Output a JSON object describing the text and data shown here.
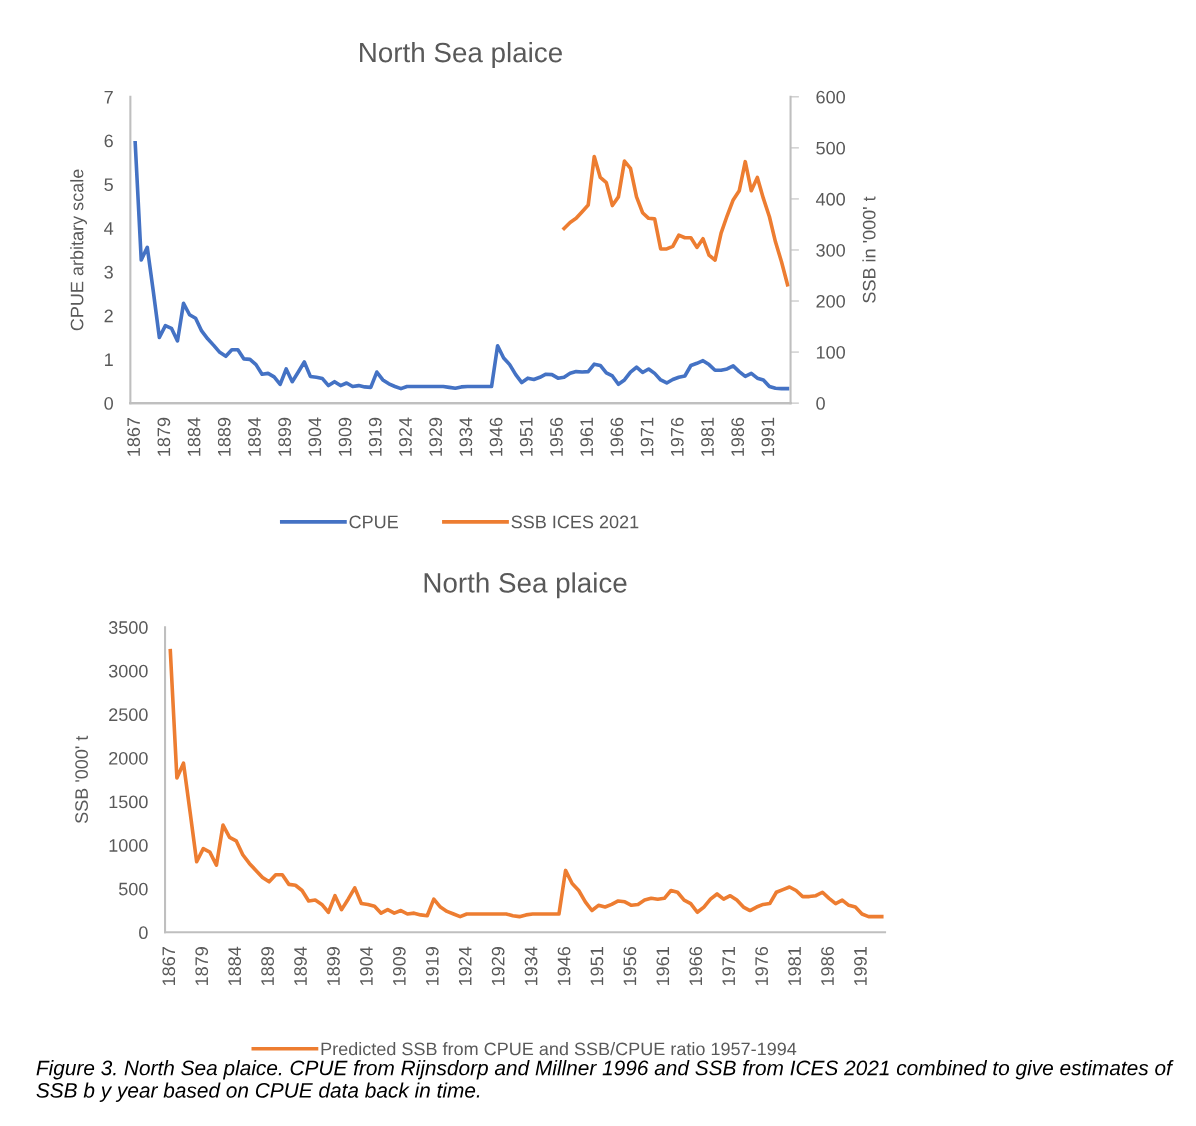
{
  "chart_data": [
    {
      "type": "line",
      "title": "North Sea plaice",
      "ylabel": "CPUE arbitary scale",
      "y2label": "SSB in '000' t",
      "categories": [
        "1867",
        null,
        null,
        null,
        null,
        "1879",
        null,
        null,
        null,
        null,
        "1884",
        null,
        null,
        null,
        null,
        "1889",
        null,
        null,
        null,
        null,
        "1894",
        null,
        null,
        null,
        null,
        "1899",
        null,
        null,
        null,
        null,
        "1904",
        null,
        null,
        null,
        null,
        "1909",
        null,
        null,
        null,
        null,
        "1919",
        null,
        null,
        null,
        null,
        "1924",
        null,
        null,
        null,
        null,
        "1929",
        null,
        null,
        null,
        null,
        "1934",
        null,
        null,
        null,
        null,
        "1946",
        null,
        null,
        null,
        null,
        "1951",
        null,
        null,
        null,
        null,
        "1956",
        null,
        null,
        null,
        null,
        "1961",
        null,
        null,
        null,
        null,
        "1966",
        null,
        null,
        null,
        null,
        "1971",
        null,
        null,
        null,
        null,
        "1976",
        null,
        null,
        null,
        null,
        "1981",
        null,
        null,
        null,
        null,
        "1986",
        null,
        null,
        null,
        null,
        "1991",
        null,
        null,
        null
      ],
      "series": [
        {
          "name": "CPUE",
          "color": "#4472c4",
          "values": [
            5.95,
            3.27,
            3.56,
            2.55,
            1.5,
            1.77,
            1.71,
            1.42,
            2.28,
            2.02,
            1.94,
            1.65,
            1.47,
            1.32,
            1.16,
            1.07,
            1.22,
            1.22,
            1.01,
            1.0,
            0.88,
            0.66,
            0.68,
            0.6,
            0.43,
            0.78,
            0.49,
            0.71,
            0.94,
            0.61,
            0.59,
            0.56,
            0.4,
            0.49,
            0.4,
            0.46,
            0.38,
            0.4,
            0.37,
            0.36,
            0.71,
            0.53,
            0.44,
            0.38,
            0.33,
            0.38,
            0.38,
            0.38,
            0.38,
            0.38,
            0.38,
            0.38,
            0.36,
            0.34,
            0.37,
            0.38,
            0.38,
            0.38,
            0.38,
            0.38,
            1.31,
            1.03,
            0.88,
            0.65,
            0.47,
            0.57,
            0.54,
            0.59,
            0.66,
            0.65,
            0.57,
            0.59,
            0.68,
            0.72,
            0.71,
            0.72,
            0.89,
            0.86,
            0.69,
            0.62,
            0.43,
            0.53,
            0.71,
            0.82,
            0.7,
            0.78,
            0.68,
            0.53,
            0.46,
            0.54,
            0.59,
            0.62,
            0.86,
            0.91,
            0.97,
            0.88,
            0.75,
            0.75,
            0.78,
            0.85,
            0.72,
            0.61,
            0.68,
            0.57,
            0.53,
            0.38,
            0.34,
            0.33,
            0.33
          ]
        },
        {
          "name": "SSB ICES 2021",
          "color": "#ed7d31",
          "axis": "y2",
          "values": [
            null,
            null,
            null,
            null,
            null,
            null,
            null,
            null,
            null,
            null,
            null,
            null,
            null,
            null,
            null,
            null,
            null,
            null,
            null,
            null,
            null,
            null,
            null,
            null,
            null,
            null,
            null,
            null,
            null,
            null,
            null,
            null,
            null,
            null,
            null,
            null,
            null,
            null,
            null,
            null,
            null,
            null,
            null,
            null,
            null,
            null,
            null,
            null,
            null,
            null,
            null,
            null,
            null,
            null,
            null,
            null,
            null,
            null,
            null,
            null,
            null,
            null,
            null,
            null,
            null,
            null,
            null,
            null,
            null,
            null,
            null,
            342,
            354,
            362,
            375,
            388,
            483,
            442,
            432,
            387,
            404,
            474,
            460,
            404,
            373,
            362,
            361,
            302,
            302,
            307,
            329,
            324,
            324,
            305,
            322,
            290,
            280,
            333,
            367,
            398,
            416,
            473,
            416,
            442,
            401,
            365,
            316,
            277,
            232
          ]
        }
      ],
      "ylim": [
        0,
        7
      ],
      "yticks": [
        0,
        1,
        2,
        3,
        4,
        5,
        6,
        7
      ],
      "y2lim": [
        0,
        600
      ],
      "y2ticks": [
        0,
        100,
        200,
        300,
        400,
        500,
        600
      ],
      "grid": false,
      "legend": "bottom",
      "marker": "none",
      "line_style": "solid"
    },
    {
      "type": "line",
      "title": "North Sea plaice",
      "ylabel": "SSB '000' t",
      "categories": [
        "1867",
        null,
        null,
        null,
        null,
        "1879",
        null,
        null,
        null,
        null,
        "1884",
        null,
        null,
        null,
        null,
        "1889",
        null,
        null,
        null,
        null,
        "1894",
        null,
        null,
        null,
        null,
        "1899",
        null,
        null,
        null,
        null,
        "1904",
        null,
        null,
        null,
        null,
        "1909",
        null,
        null,
        null,
        null,
        "1919",
        null,
        null,
        null,
        null,
        "1924",
        null,
        null,
        null,
        null,
        "1929",
        null,
        null,
        null,
        null,
        "1934",
        null,
        null,
        null,
        null,
        "1946",
        null,
        null,
        null,
        null,
        "1951",
        null,
        null,
        null,
        null,
        "1956",
        null,
        null,
        null,
        null,
        "1961",
        null,
        null,
        null,
        null,
        "1966",
        null,
        null,
        null,
        null,
        "1971",
        null,
        null,
        null,
        null,
        "1976",
        null,
        null,
        null,
        null,
        "1981",
        null,
        null,
        null,
        null,
        "1986",
        null,
        null,
        null,
        null,
        "1991",
        null,
        null,
        null
      ],
      "series": [
        {
          "name": "Predicted SSB from CPUE and SSB/CPUE ratio 1957-1994",
          "color": "#ed7d31",
          "values": [
            3230,
            1770,
            1940,
            1380,
            810,
            960,
            920,
            770,
            1230,
            1090,
            1050,
            890,
            790,
            710,
            630,
            580,
            660,
            660,
            550,
            540,
            480,
            360,
            370,
            320,
            230,
            420,
            260,
            380,
            510,
            330,
            320,
            300,
            220,
            260,
            220,
            250,
            210,
            220,
            200,
            190,
            380,
            290,
            240,
            210,
            180,
            210,
            210,
            210,
            210,
            210,
            210,
            210,
            190,
            180,
            200,
            210,
            210,
            210,
            210,
            210,
            710,
            560,
            480,
            350,
            250,
            310,
            290,
            320,
            360,
            350,
            310,
            320,
            370,
            390,
            380,
            390,
            480,
            460,
            370,
            330,
            230,
            290,
            380,
            440,
            380,
            420,
            370,
            290,
            250,
            290,
            320,
            330,
            460,
            490,
            520,
            480,
            410,
            410,
            420,
            460,
            390,
            330,
            370,
            310,
            290,
            210,
            180,
            180,
            180
          ]
        }
      ],
      "ylim": [
        0,
        3500
      ],
      "yticks": [
        0,
        500,
        1000,
        1500,
        2000,
        2500,
        3000,
        3500
      ],
      "grid": false,
      "legend": "bottom",
      "marker": "none",
      "line_style": "solid",
      "annotations": [
        "Figure 3. North Sea plaice. CPUE from Rijnsdorp and Millner 1996 and SSB from ICES 2021 combined to give estimates of SSB b y year based on CPUE data back in time."
      ]
    }
  ]
}
